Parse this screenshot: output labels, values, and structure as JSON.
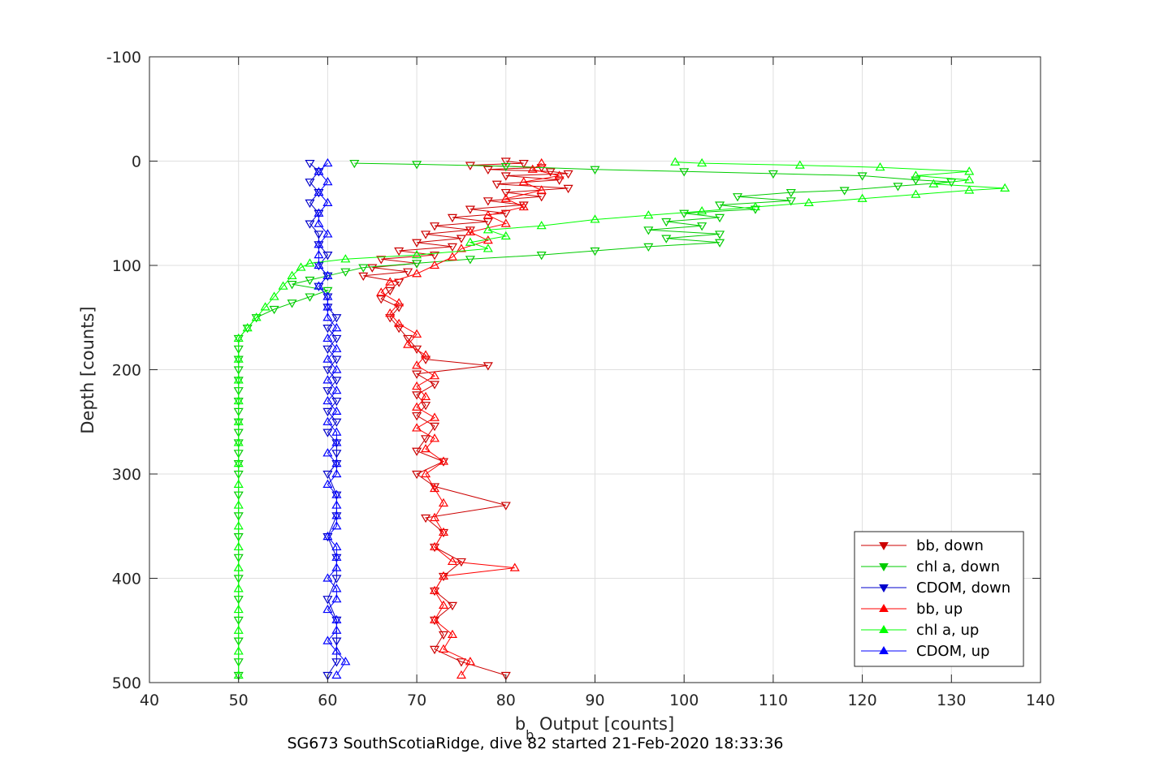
{
  "chart_data": {
    "type": "line",
    "xlabel_main": "b",
    "xlabel_sub": "b",
    "xlabel_rest": " Output [counts]",
    "ylabel": "Depth [counts]",
    "caption": "SG673 SouthScotiaRidge, dive 82 started 21-Feb-2020 18:33:36",
    "xlim": [
      40,
      140
    ],
    "ylim": [
      -100,
      500
    ],
    "y_reversed": true,
    "grid": true,
    "legend_position": "bottom-right",
    "x_ticks": [
      "40",
      "50",
      "60",
      "70",
      "80",
      "90",
      "100",
      "110",
      "120",
      "130",
      "140"
    ],
    "y_ticks": [
      "-100",
      "0",
      "100",
      "200",
      "300",
      "400",
      "500"
    ],
    "series": [
      {
        "name": "bb, down",
        "color": "#cc0000",
        "marker": "triangle-down",
        "points": [
          [
            80,
            0
          ],
          [
            82,
            2
          ],
          [
            76,
            4
          ],
          [
            84,
            6
          ],
          [
            78,
            8
          ],
          [
            85,
            10
          ],
          [
            87,
            12
          ],
          [
            80,
            14
          ],
          [
            86,
            18
          ],
          [
            79,
            22
          ],
          [
            87,
            26
          ],
          [
            80,
            30
          ],
          [
            84,
            34
          ],
          [
            78,
            38
          ],
          [
            82,
            42
          ],
          [
            76,
            46
          ],
          [
            80,
            50
          ],
          [
            74,
            54
          ],
          [
            78,
            58
          ],
          [
            72,
            62
          ],
          [
            76,
            66
          ],
          [
            71,
            70
          ],
          [
            75,
            74
          ],
          [
            70,
            78
          ],
          [
            74,
            82
          ],
          [
            68,
            86
          ],
          [
            72,
            90
          ],
          [
            66,
            94
          ],
          [
            70,
            98
          ],
          [
            65,
            102
          ],
          [
            69,
            106
          ],
          [
            64,
            110
          ],
          [
            68,
            116
          ],
          [
            67,
            124
          ],
          [
            66,
            132
          ],
          [
            68,
            140
          ],
          [
            67,
            150
          ],
          [
            68,
            160
          ],
          [
            69,
            170
          ],
          [
            70,
            180
          ],
          [
            71,
            190
          ],
          [
            78,
            196
          ],
          [
            70,
            204
          ],
          [
            72,
            214
          ],
          [
            70,
            224
          ],
          [
            71,
            234
          ],
          [
            70,
            244
          ],
          [
            72,
            254
          ],
          [
            71,
            266
          ],
          [
            70,
            278
          ],
          [
            73,
            288
          ],
          [
            70,
            300
          ],
          [
            72,
            312
          ],
          [
            80,
            330
          ],
          [
            71,
            342
          ],
          [
            73,
            356
          ],
          [
            72,
            370
          ],
          [
            75,
            384
          ],
          [
            73,
            398
          ],
          [
            72,
            412
          ],
          [
            74,
            426
          ],
          [
            72,
            440
          ],
          [
            73,
            454
          ],
          [
            72,
            468
          ],
          [
            75,
            480
          ],
          [
            80,
            493
          ]
        ]
      },
      {
        "name": "chl a, down",
        "color": "#00cc00",
        "marker": "triangle-down",
        "points": [
          [
            63,
            2
          ],
          [
            70,
            3
          ],
          [
            80,
            5
          ],
          [
            90,
            8
          ],
          [
            100,
            10
          ],
          [
            110,
            12
          ],
          [
            120,
            14
          ],
          [
            126,
            18
          ],
          [
            130,
            20
          ],
          [
            124,
            24
          ],
          [
            118,
            28
          ],
          [
            112,
            30
          ],
          [
            106,
            34
          ],
          [
            112,
            38
          ],
          [
            104,
            42
          ],
          [
            108,
            46
          ],
          [
            100,
            50
          ],
          [
            104,
            54
          ],
          [
            98,
            58
          ],
          [
            102,
            62
          ],
          [
            96,
            66
          ],
          [
            104,
            70
          ],
          [
            98,
            74
          ],
          [
            104,
            78
          ],
          [
            96,
            82
          ],
          [
            90,
            86
          ],
          [
            84,
            90
          ],
          [
            76,
            94
          ],
          [
            70,
            98
          ],
          [
            64,
            102
          ],
          [
            62,
            106
          ],
          [
            60,
            110
          ],
          [
            58,
            114
          ],
          [
            56,
            118
          ],
          [
            60,
            124
          ],
          [
            58,
            130
          ],
          [
            56,
            136
          ],
          [
            54,
            142
          ],
          [
            52,
            150
          ],
          [
            51,
            160
          ],
          [
            50,
            170
          ],
          [
            50,
            180
          ],
          [
            50,
            190
          ],
          [
            50,
            200
          ],
          [
            50,
            210
          ],
          [
            50,
            220
          ],
          [
            50,
            230
          ],
          [
            50,
            240
          ],
          [
            50,
            250
          ],
          [
            50,
            260
          ],
          [
            50,
            270
          ],
          [
            50,
            280
          ],
          [
            50,
            290
          ],
          [
            50,
            300
          ],
          [
            50,
            320
          ],
          [
            50,
            340
          ],
          [
            50,
            360
          ],
          [
            50,
            380
          ],
          [
            50,
            400
          ],
          [
            50,
            420
          ],
          [
            50,
            440
          ],
          [
            50,
            460
          ],
          [
            50,
            480
          ],
          [
            50,
            493
          ]
        ]
      },
      {
        "name": "CDOM, down",
        "color": "#0000cc",
        "marker": "triangle-down",
        "points": [
          [
            58,
            2
          ],
          [
            59,
            10
          ],
          [
            58,
            20
          ],
          [
            59,
            30
          ],
          [
            58,
            40
          ],
          [
            59,
            50
          ],
          [
            58,
            60
          ],
          [
            59,
            70
          ],
          [
            59,
            80
          ],
          [
            60,
            90
          ],
          [
            59,
            100
          ],
          [
            60,
            110
          ],
          [
            59,
            120
          ],
          [
            60,
            130
          ],
          [
            60,
            140
          ],
          [
            61,
            150
          ],
          [
            60,
            160
          ],
          [
            61,
            170
          ],
          [
            60,
            180
          ],
          [
            61,
            190
          ],
          [
            60,
            200
          ],
          [
            61,
            210
          ],
          [
            60,
            220
          ],
          [
            61,
            230
          ],
          [
            60,
            240
          ],
          [
            61,
            250
          ],
          [
            60,
            260
          ],
          [
            61,
            270
          ],
          [
            61,
            280
          ],
          [
            61,
            290
          ],
          [
            60,
            300
          ],
          [
            61,
            320
          ],
          [
            61,
            340
          ],
          [
            60,
            360
          ],
          [
            61,
            380
          ],
          [
            61,
            400
          ],
          [
            60,
            420
          ],
          [
            61,
            440
          ],
          [
            61,
            460
          ],
          [
            61,
            480
          ],
          [
            60,
            493
          ]
        ]
      },
      {
        "name": "bb, up",
        "color": "#ff0000",
        "marker": "triangle-up",
        "points": [
          [
            75,
            493
          ],
          [
            76,
            480
          ],
          [
            73,
            468
          ],
          [
            74,
            454
          ],
          [
            72,
            440
          ],
          [
            73,
            426
          ],
          [
            72,
            412
          ],
          [
            73,
            398
          ],
          [
            81,
            390
          ],
          [
            74,
            384
          ],
          [
            72,
            370
          ],
          [
            73,
            356
          ],
          [
            72,
            342
          ],
          [
            73,
            328
          ],
          [
            72,
            314
          ],
          [
            71,
            300
          ],
          [
            73,
            288
          ],
          [
            71,
            276
          ],
          [
            72,
            266
          ],
          [
            70,
            256
          ],
          [
            72,
            246
          ],
          [
            70,
            236
          ],
          [
            71,
            226
          ],
          [
            70,
            216
          ],
          [
            72,
            206
          ],
          [
            70,
            196
          ],
          [
            71,
            186
          ],
          [
            69,
            176
          ],
          [
            70,
            166
          ],
          [
            68,
            156
          ],
          [
            67,
            146
          ],
          [
            68,
            136
          ],
          [
            66,
            126
          ],
          [
            67,
            116
          ],
          [
            70,
            108
          ],
          [
            72,
            100
          ],
          [
            74,
            92
          ],
          [
            75,
            84
          ],
          [
            78,
            76
          ],
          [
            76,
            68
          ],
          [
            80,
            60
          ],
          [
            78,
            52
          ],
          [
            82,
            44
          ],
          [
            80,
            36
          ],
          [
            84,
            28
          ],
          [
            82,
            20
          ],
          [
            86,
            14
          ],
          [
            83,
            8
          ],
          [
            84,
            2
          ]
        ]
      },
      {
        "name": "chl a, up",
        "color": "#00ff00",
        "marker": "triangle-up",
        "points": [
          [
            50,
            493
          ],
          [
            50,
            470
          ],
          [
            50,
            450
          ],
          [
            50,
            430
          ],
          [
            50,
            410
          ],
          [
            50,
            390
          ],
          [
            50,
            370
          ],
          [
            50,
            350
          ],
          [
            50,
            330
          ],
          [
            50,
            310
          ],
          [
            50,
            290
          ],
          [
            50,
            270
          ],
          [
            50,
            250
          ],
          [
            50,
            230
          ],
          [
            50,
            210
          ],
          [
            50,
            190
          ],
          [
            50,
            170
          ],
          [
            51,
            160
          ],
          [
            52,
            150
          ],
          [
            53,
            140
          ],
          [
            54,
            130
          ],
          [
            55,
            120
          ],
          [
            56,
            110
          ],
          [
            57,
            102
          ],
          [
            58,
            98
          ],
          [
            62,
            94
          ],
          [
            70,
            90
          ],
          [
            78,
            84
          ],
          [
            76,
            78
          ],
          [
            80,
            72
          ],
          [
            78,
            66
          ],
          [
            84,
            62
          ],
          [
            90,
            56
          ],
          [
            96,
            52
          ],
          [
            102,
            48
          ],
          [
            108,
            44
          ],
          [
            114,
            40
          ],
          [
            120,
            36
          ],
          [
            126,
            32
          ],
          [
            132,
            28
          ],
          [
            136,
            26
          ],
          [
            128,
            22
          ],
          [
            132,
            18
          ],
          [
            126,
            14
          ],
          [
            132,
            10
          ],
          [
            122,
            6
          ],
          [
            113,
            4
          ],
          [
            102,
            2
          ],
          [
            99,
            1
          ]
        ]
      },
      {
        "name": "CDOM, up",
        "color": "#0000ff",
        "marker": "triangle-up",
        "points": [
          [
            61,
            493
          ],
          [
            62,
            480
          ],
          [
            61,
            470
          ],
          [
            60,
            460
          ],
          [
            61,
            450
          ],
          [
            61,
            440
          ],
          [
            60,
            430
          ],
          [
            61,
            420
          ],
          [
            61,
            410
          ],
          [
            60,
            400
          ],
          [
            61,
            390
          ],
          [
            61,
            380
          ],
          [
            61,
            370
          ],
          [
            60,
            360
          ],
          [
            61,
            350
          ],
          [
            61,
            340
          ],
          [
            61,
            330
          ],
          [
            61,
            320
          ],
          [
            60,
            310
          ],
          [
            61,
            300
          ],
          [
            61,
            290
          ],
          [
            60,
            280
          ],
          [
            61,
            270
          ],
          [
            61,
            260
          ],
          [
            60,
            250
          ],
          [
            61,
            240
          ],
          [
            60,
            230
          ],
          [
            61,
            220
          ],
          [
            60,
            210
          ],
          [
            61,
            200
          ],
          [
            60,
            190
          ],
          [
            61,
            180
          ],
          [
            60,
            170
          ],
          [
            61,
            160
          ],
          [
            60,
            150
          ],
          [
            60,
            140
          ],
          [
            60,
            130
          ],
          [
            59,
            120
          ],
          [
            60,
            110
          ],
          [
            59,
            100
          ],
          [
            59,
            90
          ],
          [
            59,
            80
          ],
          [
            60,
            70
          ],
          [
            59,
            60
          ],
          [
            59,
            50
          ],
          [
            60,
            40
          ],
          [
            59,
            30
          ],
          [
            60,
            20
          ],
          [
            59,
            10
          ],
          [
            60,
            2
          ]
        ]
      }
    ]
  }
}
